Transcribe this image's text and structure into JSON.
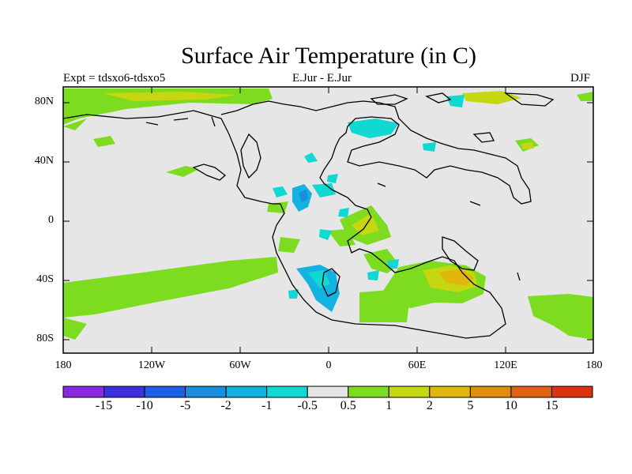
{
  "title": "Surface Air Temperature (in C)",
  "left_label": "Expt = tdsxo6-tdsxo5",
  "center_label": "E.Jur - E.Jur",
  "right_label": "DJF",
  "y_ticks": [
    "80N",
    "40N",
    "0",
    "40S",
    "80S"
  ],
  "x_ticks": [
    "180",
    "120W",
    "60W",
    "0",
    "60E",
    "120E",
    "180"
  ],
  "colorbar": {
    "colors": [
      "#8a2be2",
      "#3b2fe0",
      "#1e5fe6",
      "#1a8fe0",
      "#13b2e0",
      "#12d8d2",
      "#e6e6e6",
      "#7ddc1f",
      "#c6d610",
      "#e0b70c",
      "#e08f0c",
      "#e06212",
      "#dc3210"
    ],
    "labels": [
      "-15",
      "-10",
      "-5",
      "-2",
      "-1",
      "-0.5",
      "0.5",
      "1",
      "2",
      "5",
      "10",
      "15"
    ]
  },
  "colors": {
    "land_background": "#e6e6e6",
    "green": "#7ddc1f",
    "yellow_green": "#c6d610",
    "gold": "#e0b70c",
    "cyan": "#12d8d2",
    "light_blue": "#13b2e0",
    "blue": "#1a8fe0"
  }
}
